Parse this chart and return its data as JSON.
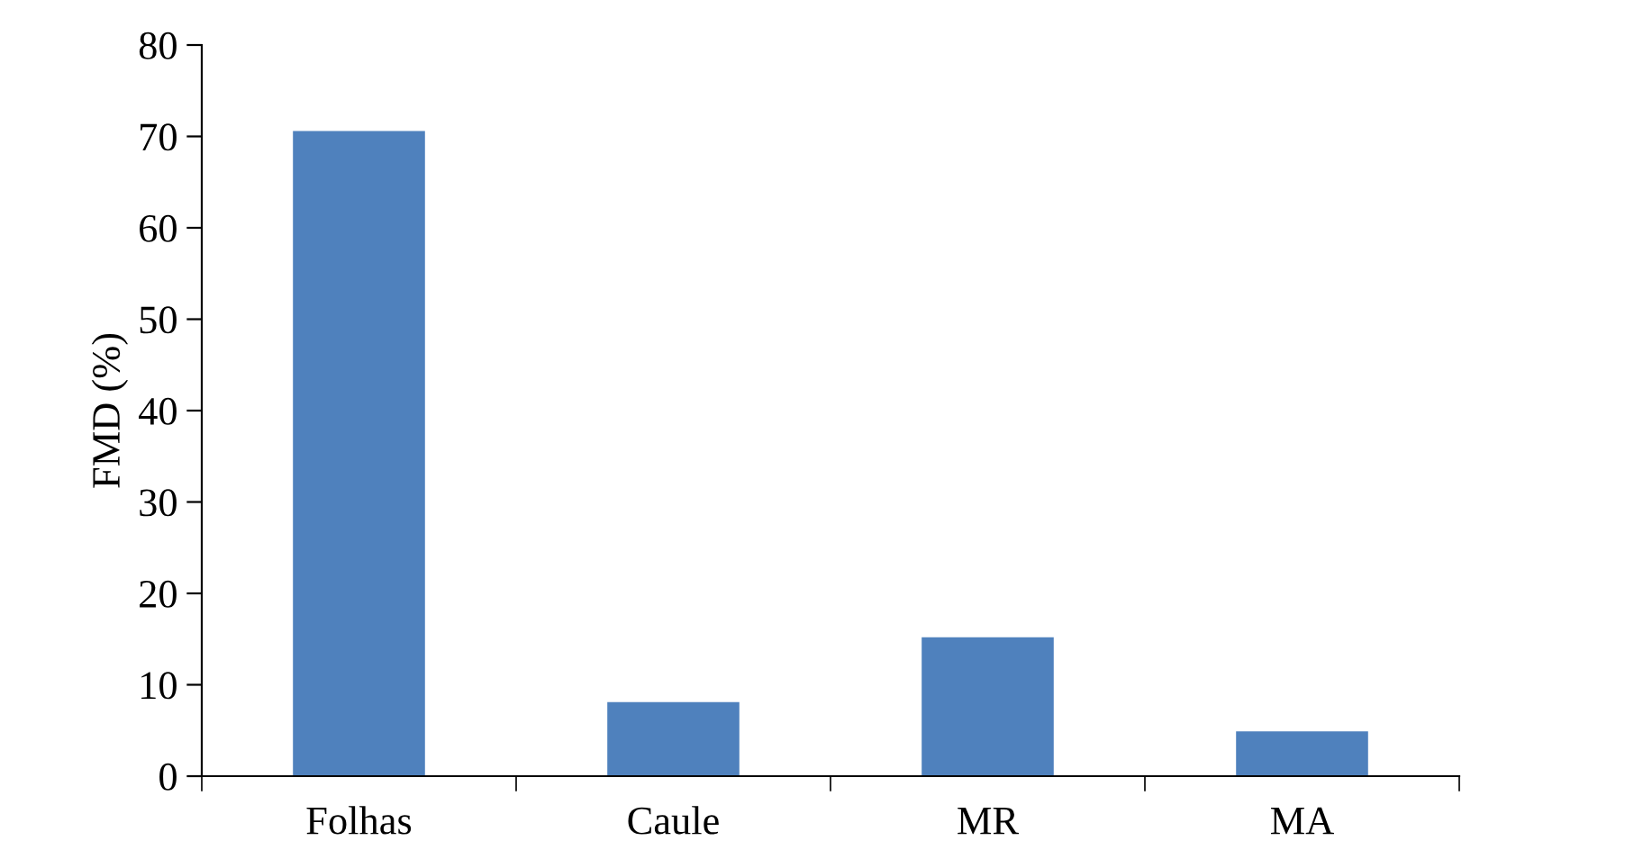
{
  "chart_data": {
    "type": "bar",
    "ylabel": "FMD (%)",
    "categories": [
      "Folhas",
      "Caule",
      "MR",
      "MA"
    ],
    "values": [
      70.6,
      8.1,
      15.2,
      4.9
    ],
    "color": "#4f81bd",
    "ylim": [
      0,
      80
    ],
    "yticks": [
      0,
      10,
      20,
      30,
      40,
      50,
      60,
      70,
      80
    ],
    "grid": false,
    "legend": false
  }
}
